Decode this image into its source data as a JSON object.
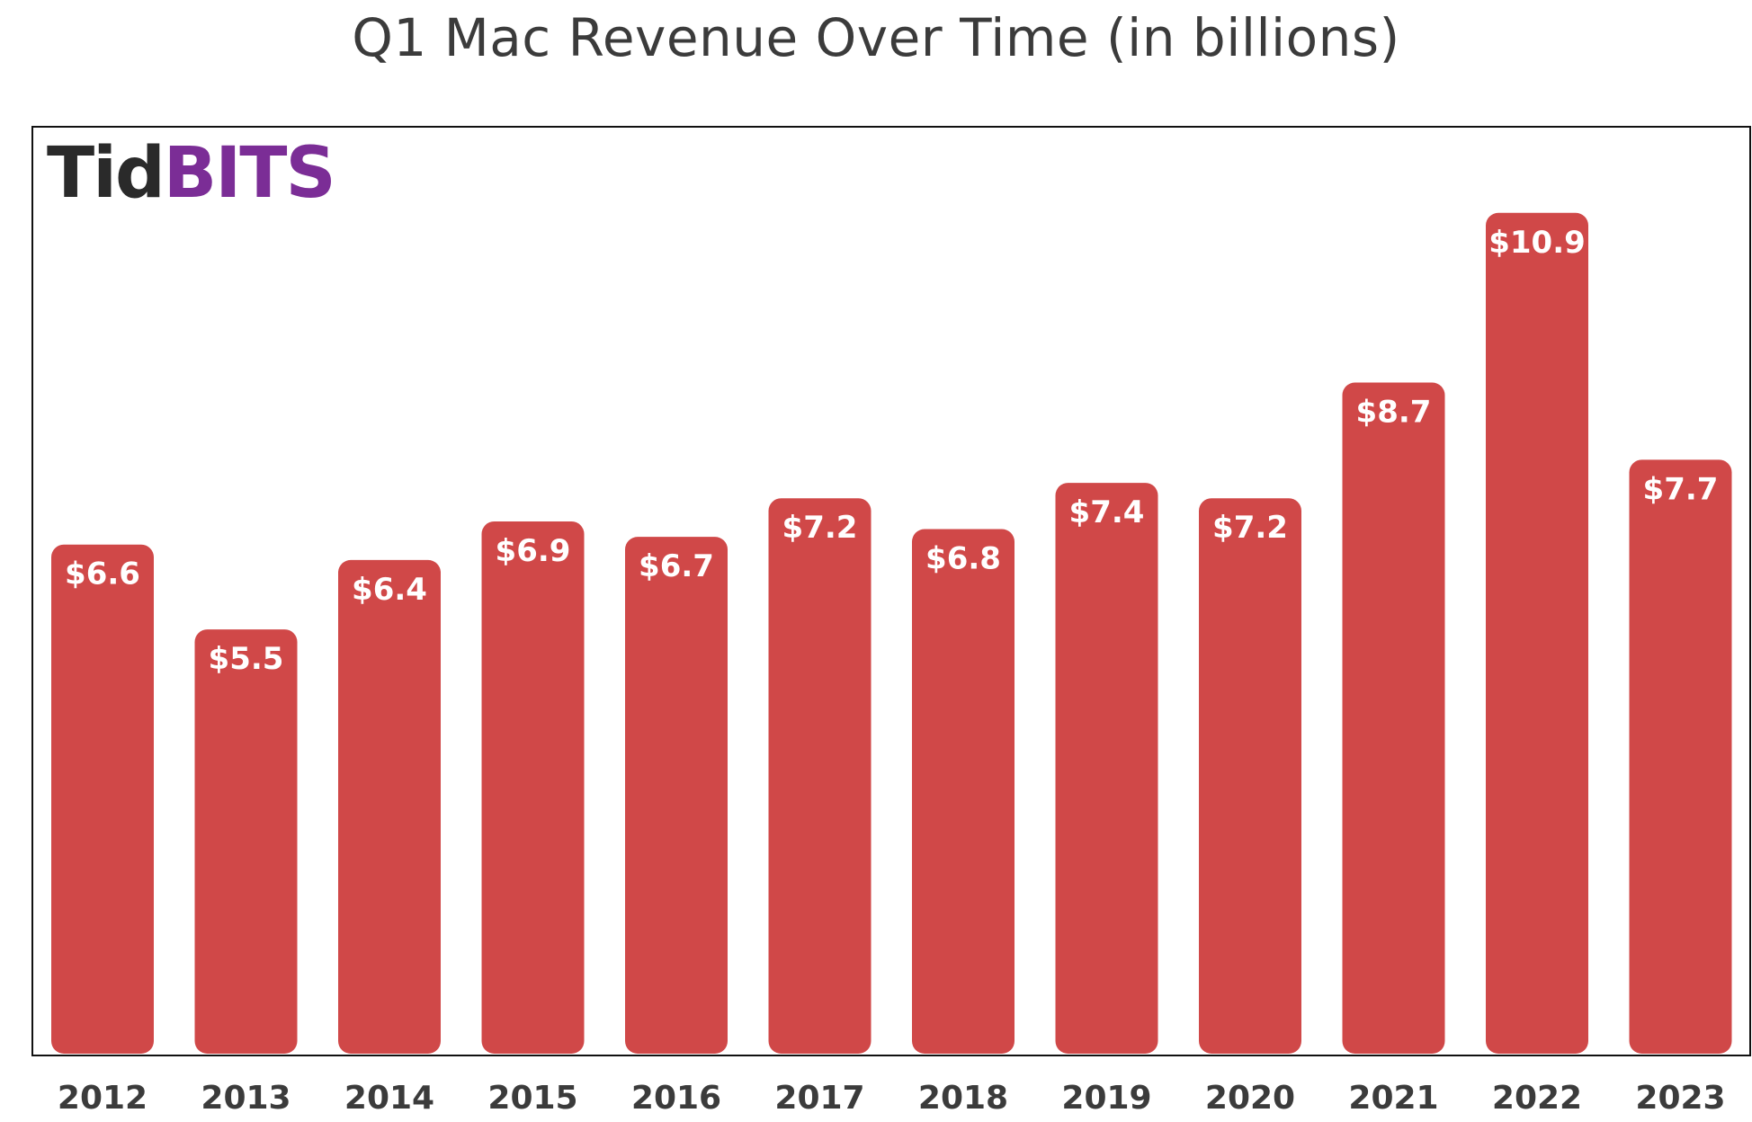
{
  "title": "Q1 Mac Revenue Over Time (in billions)",
  "brand": {
    "part1": "Tid",
    "part2": "BITS"
  },
  "colors": {
    "bar": "#d04848",
    "brand_dark": "#2a2a2a",
    "brand_purple": "#7b2d96",
    "label_text": "#ffffff",
    "tick_text": "#3b3b3b"
  },
  "chart_data": {
    "type": "bar",
    "title": "Q1 Mac Revenue Over Time (in billions)",
    "xlabel": "",
    "ylabel": "",
    "categories": [
      "2012",
      "2013",
      "2014",
      "2015",
      "2016",
      "2017",
      "2018",
      "2019",
      "2020",
      "2021",
      "2022",
      "2023"
    ],
    "values": [
      6.6,
      5.5,
      6.4,
      6.9,
      6.7,
      7.2,
      6.8,
      7.4,
      7.2,
      8.7,
      10.9,
      7.7
    ],
    "data_labels": [
      "$6.6",
      "$5.5",
      "$6.4",
      "$6.9",
      "$6.7",
      "$7.2",
      "$6.8",
      "$7.4",
      "$7.2",
      "$8.7",
      "$10.9",
      "$7.7"
    ],
    "ylim": [
      0,
      12
    ],
    "grid": false,
    "legend": "none"
  }
}
